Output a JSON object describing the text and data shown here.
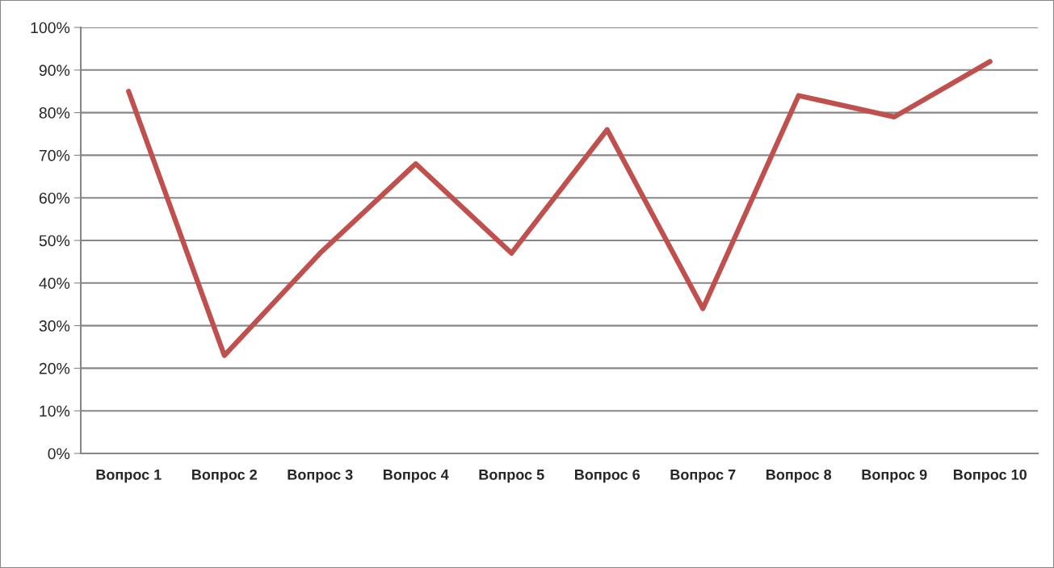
{
  "chart_data": {
    "type": "line",
    "categories": [
      "Вопрос 1",
      "Вопрос 2",
      "Вопрос 3",
      "Вопрос 4",
      "Вопрос 5",
      "Вопрос 6",
      "Вопрос 7",
      "Вопрос 8",
      "Вопрос 9",
      "Вопрос 10"
    ],
    "series": [
      {
        "color": "#c0504d",
        "values": [
          85,
          23,
          47,
          68,
          47,
          76,
          34,
          84,
          79,
          92
        ]
      }
    ],
    "ylim": [
      0,
      100
    ],
    "yticks": [
      {
        "value": 0,
        "label": "0%"
      },
      {
        "value": 10,
        "label": "10%"
      },
      {
        "value": 20,
        "label": "20%"
      },
      {
        "value": 30,
        "label": "30%"
      },
      {
        "value": 40,
        "label": "40%"
      },
      {
        "value": 50,
        "label": "50%"
      },
      {
        "value": 60,
        "label": "60%"
      },
      {
        "value": 70,
        "label": "70%"
      },
      {
        "value": 80,
        "label": "80%"
      },
      {
        "value": 90,
        "label": "90%"
      },
      {
        "value": 100,
        "label": "100%"
      }
    ],
    "grid": "y",
    "marker": "none",
    "line_style": "solid"
  }
}
